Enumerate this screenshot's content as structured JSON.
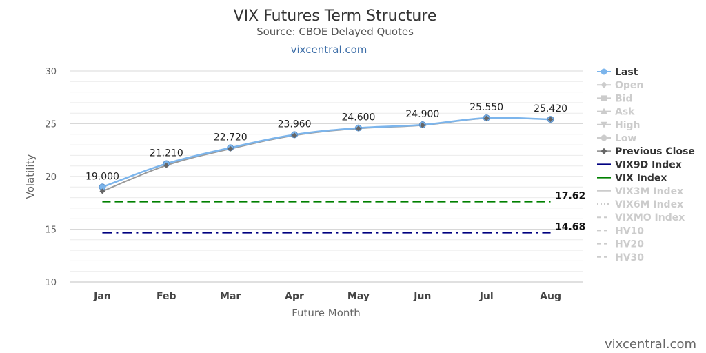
{
  "chart_data": {
    "type": "line",
    "title": "VIX Futures Term Structure",
    "subtitle": "Source: CBOE Delayed Quotes",
    "credit_link": "vixcentral.com",
    "watermark": "vixcentral.com",
    "xlabel": "Future Month",
    "ylabel": "Volatility",
    "categories": [
      "Jan",
      "Feb",
      "Mar",
      "Apr",
      "May",
      "Jun",
      "Jul",
      "Aug"
    ],
    "ylim": [
      10,
      30
    ],
    "yticks": [
      10,
      15,
      20,
      25,
      30
    ],
    "grid": true,
    "legend_position": "right",
    "series": [
      {
        "name": "Last",
        "values": [
          19.0,
          21.21,
          22.72,
          23.96,
          24.6,
          24.9,
          25.55,
          25.42
        ],
        "labels": [
          "19.000",
          "21.210",
          "22.720",
          "23.960",
          "24.600",
          "24.900",
          "25.550",
          "25.420"
        ],
        "color": "#7cb5ec",
        "marker": "circle",
        "visible": true
      },
      {
        "name": "Previous Close",
        "values": [
          18.6,
          21.05,
          22.62,
          23.9,
          24.55,
          24.86,
          25.52,
          25.42
        ],
        "color": "#999999",
        "marker": "diamond",
        "visible": true
      }
    ],
    "reference_lines": [
      {
        "name": "VIX9D Index",
        "value": 14.68,
        "label": "14.68",
        "color": "#000080",
        "dash": "dash-dot"
      },
      {
        "name": "VIX Index",
        "value": 17.62,
        "label": "17.62",
        "color": "#008000",
        "dash": "dash"
      }
    ],
    "legend": [
      {
        "name": "Last",
        "symbol": "circle",
        "active": true
      },
      {
        "name": "Open",
        "symbol": "diamond",
        "active": false
      },
      {
        "name": "Bid",
        "symbol": "square",
        "active": false
      },
      {
        "name": "Ask",
        "symbol": "triangle",
        "active": false
      },
      {
        "name": "High",
        "symbol": "triangle-down",
        "active": false
      },
      {
        "name": "Low",
        "symbol": "circle",
        "active": false
      },
      {
        "name": "Previous Close",
        "symbol": "diamond",
        "active": true
      },
      {
        "name": "VIX9D Index",
        "symbol": "line",
        "color": "#000080",
        "active": true
      },
      {
        "name": "VIX Index",
        "symbol": "line",
        "color": "#008000",
        "active": true
      },
      {
        "name": "VIX3M Index",
        "symbol": "line",
        "active": false
      },
      {
        "name": "VIX6M Index",
        "symbol": "dotted",
        "active": false
      },
      {
        "name": "VIXMO Index",
        "symbol": "dashed",
        "active": false
      },
      {
        "name": "HV10",
        "symbol": "dashed",
        "active": false
      },
      {
        "name": "HV20",
        "symbol": "dashed",
        "active": false
      },
      {
        "name": "HV30",
        "symbol": "dashed",
        "active": false
      }
    ],
    "colors": {
      "inactive": "#cccccc",
      "active_text": "#333333",
      "grid": "#e6e6e6"
    }
  }
}
